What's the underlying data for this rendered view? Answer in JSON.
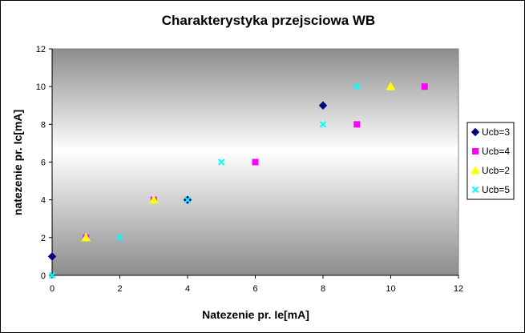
{
  "chart_data": {
    "type": "scatter",
    "title": "Charakterystyka przejsciowa WB",
    "xlabel": "Natezenie pr. Ie[mA]",
    "ylabel": "natezenie pr. Ic[mA]",
    "xlim": [
      0,
      12
    ],
    "ylim": [
      0,
      12
    ],
    "xticks": [
      "0",
      "2",
      "4",
      "6",
      "8",
      "10",
      "12"
    ],
    "yticks": [
      "0",
      "2",
      "4",
      "6",
      "8",
      "10",
      "12"
    ],
    "grid": false,
    "legend_position": "right",
    "series": [
      {
        "name": "Ucb=3",
        "marker": "diamond",
        "color": "#000080",
        "points": [
          [
            0,
            1
          ],
          [
            4,
            4
          ],
          [
            8,
            9
          ]
        ]
      },
      {
        "name": "Ucb=4",
        "marker": "square",
        "color": "#ff00ff",
        "points": [
          [
            1,
            2
          ],
          [
            3,
            4
          ],
          [
            6,
            6
          ],
          [
            9,
            8
          ],
          [
            11,
            10
          ]
        ]
      },
      {
        "name": "Ucb=2",
        "marker": "triangle",
        "color": "#ffff00",
        "points": [
          [
            1,
            2
          ],
          [
            3,
            4
          ],
          [
            10,
            10
          ]
        ]
      },
      {
        "name": "Ucb=5",
        "marker": "cross",
        "color": "#00ffff",
        "points": [
          [
            0,
            0
          ],
          [
            2,
            2
          ],
          [
            4,
            4
          ],
          [
            5,
            6
          ],
          [
            8,
            8
          ],
          [
            9,
            10
          ]
        ]
      }
    ]
  }
}
